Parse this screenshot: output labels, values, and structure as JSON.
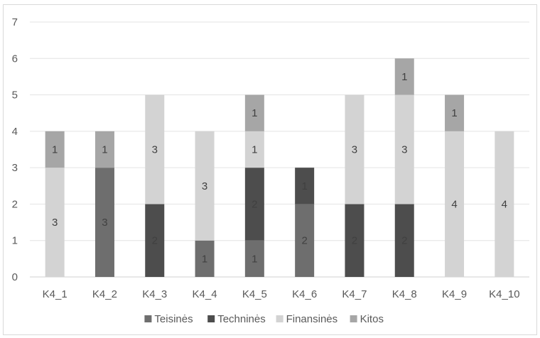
{
  "chart_data": {
    "type": "bar",
    "stacked": true,
    "categories": [
      "K4_1",
      "K4_2",
      "K4_3",
      "K4_4",
      "K4_5",
      "K4_6",
      "K4_7",
      "K4_8",
      "K4_9",
      "K4_10"
    ],
    "series": [
      {
        "name": "Teisinės",
        "color": "#6e6e6e",
        "values": [
          0,
          3,
          0,
          1,
          1,
          2,
          0,
          0,
          0,
          0
        ]
      },
      {
        "name": "Techninės",
        "color": "#4d4d4d",
        "values": [
          0,
          0,
          2,
          0,
          2,
          1,
          2,
          2,
          0,
          0
        ]
      },
      {
        "name": "Finansinės",
        "color": "#d3d3d3",
        "values": [
          3,
          0,
          3,
          3,
          1,
          0,
          3,
          3,
          4,
          4
        ]
      },
      {
        "name": "Kitos",
        "color": "#a6a6a6",
        "values": [
          1,
          1,
          0,
          0,
          1,
          0,
          0,
          1,
          1,
          0
        ]
      }
    ],
    "y_ticks": [
      "0",
      "1",
      "2",
      "3",
      "4",
      "5",
      "6",
      "7"
    ],
    "ylim": [
      0,
      7
    ],
    "grid": true,
    "legend_position": "bottom"
  }
}
